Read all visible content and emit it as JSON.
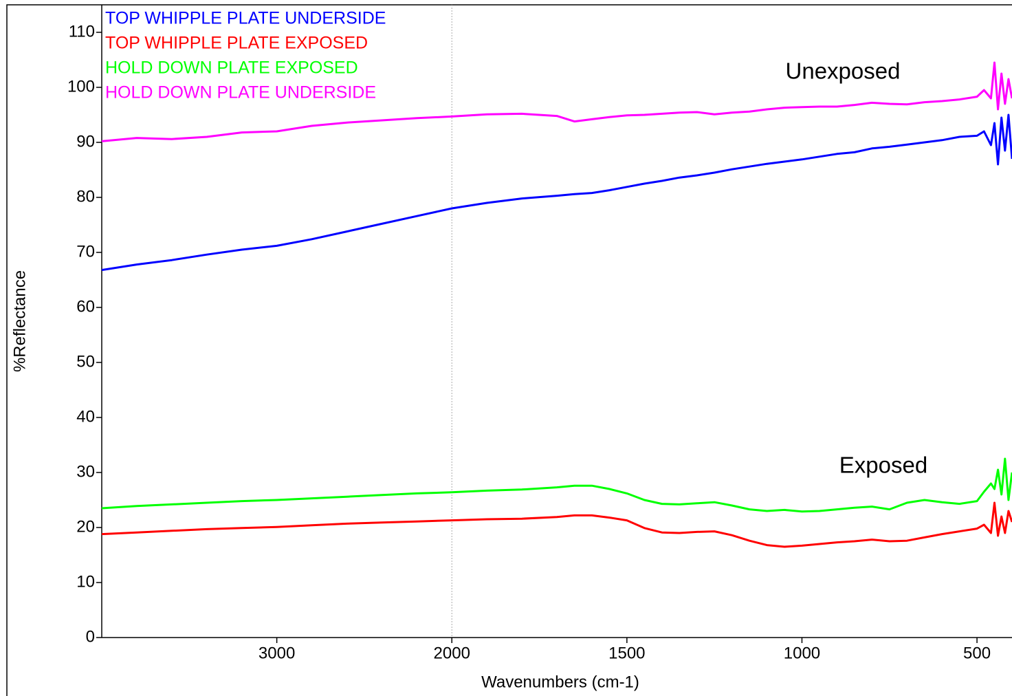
{
  "chart_data": {
    "type": "line",
    "x_label": "Wavenumbers (cm-1)",
    "y_label": "%Reflectance",
    "xlim": [
      4000,
      400
    ],
    "x_break": 2000,
    "x_expansion": 2,
    "xticks": [
      3000,
      2000,
      1500,
      1000,
      500
    ],
    "ylim": [
      0,
      115
    ],
    "yticks": [
      0,
      10,
      20,
      30,
      40,
      50,
      60,
      70,
      80,
      90,
      100,
      110
    ],
    "annotations": [
      "Unexposed",
      "Exposed"
    ],
    "x": [
      4000,
      3800,
      3600,
      3400,
      3200,
      3000,
      2800,
      2600,
      2400,
      2200,
      2000,
      1900,
      1800,
      1700,
      1650,
      1600,
      1550,
      1500,
      1450,
      1400,
      1350,
      1300,
      1250,
      1200,
      1150,
      1100,
      1050,
      1000,
      950,
      900,
      850,
      800,
      750,
      700,
      650,
      600,
      550,
      500,
      480,
      460,
      450,
      440,
      430,
      420,
      410,
      400
    ],
    "series": [
      {
        "name": "TOP WHIPPLE PLATE UNDERSIDE",
        "color": "#0000ff",
        "values": [
          66.8,
          67.8,
          68.6,
          69.6,
          70.5,
          71.2,
          72.4,
          73.8,
          75.2,
          76.6,
          78.0,
          79.0,
          79.8,
          80.3,
          80.6,
          80.8,
          81.3,
          81.9,
          82.5,
          83.0,
          83.6,
          84.0,
          84.5,
          85.1,
          85.6,
          86.1,
          86.5,
          86.9,
          87.4,
          87.9,
          88.2,
          88.9,
          89.2,
          89.6,
          90.0,
          90.4,
          91.0,
          91.2,
          92.0,
          89.5,
          93.5,
          86.0,
          94.5,
          88.5,
          95.0,
          87.0
        ]
      },
      {
        "name": "TOP WHIPPLE PLATE EXPOSED",
        "color": "#ff0000",
        "values": [
          18.8,
          19.1,
          19.4,
          19.7,
          19.9,
          20.1,
          20.4,
          20.7,
          20.9,
          21.1,
          21.3,
          21.5,
          21.6,
          21.9,
          22.2,
          22.2,
          21.8,
          21.3,
          19.9,
          19.1,
          19.0,
          19.2,
          19.3,
          18.6,
          17.6,
          16.8,
          16.5,
          16.7,
          17.0,
          17.3,
          17.5,
          17.8,
          17.5,
          17.6,
          18.2,
          18.8,
          19.3,
          19.8,
          20.5,
          19.0,
          24.5,
          18.5,
          22.0,
          19.0,
          23.0,
          21.0
        ]
      },
      {
        "name": "HOLD DOWN PLATE EXPOSED",
        "color": "#00ff00",
        "values": [
          23.5,
          23.9,
          24.2,
          24.5,
          24.8,
          25.0,
          25.3,
          25.6,
          25.9,
          26.2,
          26.4,
          26.7,
          26.9,
          27.3,
          27.6,
          27.6,
          27.0,
          26.2,
          25.0,
          24.3,
          24.2,
          24.4,
          24.6,
          24.0,
          23.3,
          23.0,
          23.2,
          22.9,
          23.0,
          23.3,
          23.6,
          23.8,
          23.3,
          24.5,
          25.0,
          24.6,
          24.3,
          24.8,
          26.5,
          28.0,
          27.0,
          30.5,
          26.0,
          32.5,
          25.0,
          30.0
        ]
      },
      {
        "name": "HOLD DOWN PLATE UNDERSIDE",
        "color": "#ff00ff",
        "values": [
          90.2,
          90.8,
          90.6,
          91.0,
          91.8,
          92.0,
          93.0,
          93.6,
          94.0,
          94.4,
          94.7,
          95.1,
          95.2,
          94.8,
          93.8,
          94.2,
          94.6,
          94.9,
          95.0,
          95.2,
          95.4,
          95.5,
          95.1,
          95.4,
          95.6,
          96.0,
          96.3,
          96.4,
          96.5,
          96.5,
          96.8,
          97.2,
          97.0,
          96.9,
          97.3,
          97.5,
          97.8,
          98.3,
          99.5,
          98.0,
          104.5,
          96.0,
          102.5,
          97.0,
          101.5,
          98.0
        ]
      }
    ]
  }
}
